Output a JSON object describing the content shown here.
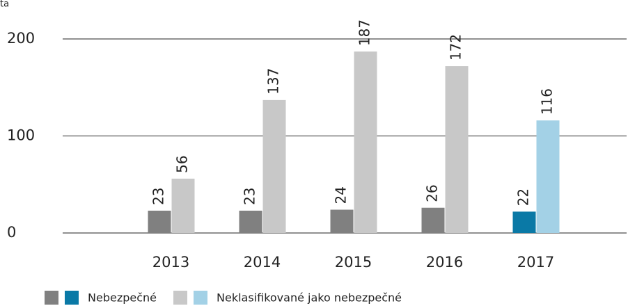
{
  "chart_data": {
    "type": "bar",
    "y_label": "ta",
    "categories": [
      "2013",
      "2014",
      "2015",
      "2016",
      "2017"
    ],
    "series": [
      {
        "name": "Nebezpečné",
        "colors": [
          "#808080",
          "#808080",
          "#808080",
          "#808080",
          "#0a79a6"
        ],
        "values": [
          23,
          23,
          24,
          26,
          22
        ]
      },
      {
        "name": "Neklasifikované jako nebezpečné",
        "colors": [
          "#c8c8c8",
          "#c8c8c8",
          "#c8c8c8",
          "#c8c8c8",
          "#a3d1e6"
        ],
        "values": [
          56,
          137,
          187,
          172,
          116
        ]
      }
    ],
    "ylim": [
      0,
      200
    ],
    "yticks": [
      0,
      100,
      200
    ],
    "grid": true
  }
}
